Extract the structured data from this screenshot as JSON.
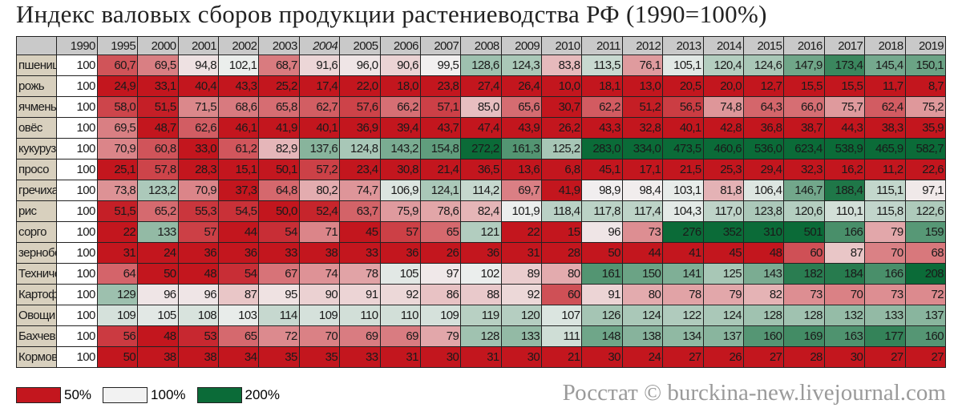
{
  "title": "Индекс валовых сборов продукции растениеводства РФ (1990=100%)",
  "table": {
    "header": [
      "1990",
      "1995",
      "2000",
      "2001",
      "2002",
      "2003",
      "2004",
      "2005",
      "2006",
      "2007",
      "2008",
      "2009",
      "2010",
      "2011",
      "2012",
      "2013",
      "2014",
      "2015",
      "2016",
      "2017",
      "2018",
      "2019"
    ],
    "rows": [
      {
        "label": "пшеница",
        "values": [
          "100",
          "60,7",
          "69,5",
          "94,8",
          "102,1",
          "68,7",
          "91,6",
          "96,0",
          "90,6",
          "99,5",
          "128,6",
          "124,3",
          "83,8",
          "113,5",
          "76,1",
          "105,1",
          "120,4",
          "124,6",
          "147,9",
          "173,4",
          "145,4",
          "150,1"
        ]
      },
      {
        "label": "рожь",
        "values": [
          "100",
          "24,9",
          "33,1",
          "40,4",
          "43,3",
          "25,2",
          "17,4",
          "22,0",
          "18,0",
          "23,8",
          "27,4",
          "26,4",
          "10,0",
          "18,1",
          "13,0",
          "20,5",
          "20,0",
          "12,7",
          "15,5",
          "15,5",
          "11,7",
          "8,7"
        ]
      },
      {
        "label": "ячмень",
        "values": [
          "100",
          "58,0",
          "51,5",
          "71,5",
          "68,6",
          "65,8",
          "62,7",
          "57,6",
          "66,2",
          "57,1",
          "85,0",
          "65,6",
          "30,7",
          "62,2",
          "51,2",
          "56,5",
          "74,8",
          "64,3",
          "66,0",
          "75,7",
          "62,4",
          "75,2"
        ]
      },
      {
        "label": "овёс",
        "values": [
          "100",
          "69,5",
          "48,7",
          "62,6",
          "46,1",
          "41,9",
          "40,1",
          "36,9",
          "39,4",
          "43,7",
          "47,4",
          "43,9",
          "26,2",
          "43,3",
          "32,8",
          "40,1",
          "42,8",
          "36,8",
          "38,7",
          "44,3",
          "38,3",
          "35,9"
        ]
      },
      {
        "label": "кукуруза",
        "values": [
          "100",
          "70,9",
          "60,8",
          "33,0",
          "61,2",
          "82,9",
          "137,6",
          "124,8",
          "143,2",
          "154,8",
          "272,2",
          "161,3",
          "125,2",
          "283,0",
          "334,0",
          "473,5",
          "460,6",
          "536,0",
          "623,4",
          "538,9",
          "465,9",
          "582,7"
        ]
      },
      {
        "label": "просо",
        "values": [
          "100",
          "25,1",
          "57,8",
          "28,3",
          "15,1",
          "50,1",
          "57,2",
          "23,4",
          "30,8",
          "21,4",
          "36,5",
          "13,6",
          "6,8",
          "45,1",
          "17,1",
          "21,5",
          "25,3",
          "29,4",
          "32,3",
          "16,2",
          "11,2",
          "22,6"
        ]
      },
      {
        "label": "гречиха",
        "values": [
          "100",
          "73,8",
          "123,2",
          "70,9",
          "37,3",
          "64,8",
          "80,2",
          "74,7",
          "106,9",
          "124,1",
          "114,2",
          "69,7",
          "41,9",
          "98,9",
          "98,4",
          "103,1",
          "81,8",
          "106,4",
          "146,7",
          "188,4",
          "115,1",
          "97,1"
        ]
      },
      {
        "label": "рис",
        "values": [
          "100",
          "51,5",
          "65,2",
          "55,3",
          "54,5",
          "50,0",
          "52,4",
          "63,7",
          "75,9",
          "78,6",
          "82,4",
          "101,9",
          "118,4",
          "117,8",
          "117,4",
          "104,3",
          "117,0",
          "123,8",
          "120,6",
          "110,1",
          "115,8",
          "122,6"
        ]
      },
      {
        "label": "сорго",
        "values": [
          "100",
          "22",
          "133",
          "57",
          "44",
          "54",
          "71",
          "45",
          "57",
          "65",
          "121",
          "22",
          "15",
          "96",
          "73",
          "276",
          "352",
          "310",
          "501",
          "166",
          "79",
          "159"
        ]
      },
      {
        "label": "зернобобовые",
        "values": [
          "100",
          "31",
          "24",
          "36",
          "36",
          "33",
          "38",
          "33",
          "36",
          "26",
          "36",
          "31",
          "28",
          "50",
          "44",
          "41",
          "45",
          "48",
          "60",
          "87",
          "70",
          "68"
        ]
      },
      {
        "label": "Технические",
        "values": [
          "100",
          "64",
          "50",
          "48",
          "54",
          "67",
          "74",
          "78",
          "105",
          "97",
          "102",
          "89",
          "80",
          "161",
          "150",
          "141",
          "125",
          "143",
          "182",
          "184",
          "166",
          "208"
        ]
      },
      {
        "label": "Картофель",
        "values": [
          "100",
          "129",
          "96",
          "96",
          "87",
          "95",
          "90",
          "91",
          "92",
          "86",
          "88",
          "92",
          "60",
          "91",
          "80",
          "78",
          "79",
          "82",
          "73",
          "70",
          "73",
          "72"
        ]
      },
      {
        "label": "Овощи",
        "values": [
          "100",
          "109",
          "105",
          "108",
          "103",
          "114",
          "109",
          "110",
          "110",
          "109",
          "119",
          "120",
          "107",
          "126",
          "124",
          "122",
          "124",
          "128",
          "128",
          "132",
          "133",
          "137"
        ]
      },
      {
        "label": "Бахчевые",
        "values": [
          "100",
          "56",
          "48",
          "53",
          "65",
          "72",
          "70",
          "69",
          "69",
          "79",
          "128",
          "133",
          "111",
          "148",
          "138",
          "134",
          "137",
          "160",
          "169",
          "163",
          "177",
          "160"
        ]
      },
      {
        "label": "Кормовые",
        "values": [
          "100",
          "50",
          "38",
          "38",
          "34",
          "35",
          "35",
          "33",
          "31",
          "30",
          "31",
          "30",
          "21",
          "30",
          "24",
          "27",
          "26",
          "27",
          "28",
          "30",
          "27",
          "27"
        ]
      }
    ]
  },
  "legend": [
    {
      "label": "50%",
      "color": "#c3161e"
    },
    {
      "label": "100%",
      "color": "#f2f2f2"
    },
    {
      "label": "200%",
      "color": "#0b6b38"
    }
  ],
  "source": "Росстат © burckina-new.livejournal.com"
}
